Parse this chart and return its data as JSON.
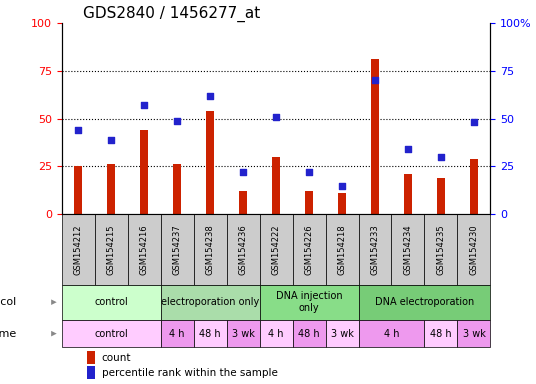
{
  "title": "GDS2840 / 1456277_at",
  "samples": [
    "GSM154212",
    "GSM154215",
    "GSM154216",
    "GSM154237",
    "GSM154238",
    "GSM154236",
    "GSM154222",
    "GSM154226",
    "GSM154218",
    "GSM154233",
    "GSM154234",
    "GSM154235",
    "GSM154230"
  ],
  "counts": [
    25,
    26,
    44,
    26,
    54,
    12,
    30,
    12,
    11,
    81,
    21,
    19,
    29
  ],
  "percentiles": [
    44,
    39,
    57,
    49,
    62,
    22,
    51,
    22,
    15,
    70,
    34,
    30,
    48
  ],
  "bar_color": "#cc2200",
  "dot_color": "#2222cc",
  "ylim": [
    0,
    100
  ],
  "yticks": [
    0,
    25,
    50,
    75,
    100
  ],
  "grid_lines": [
    25,
    50,
    75
  ],
  "protocol_groups": [
    {
      "label": "control",
      "start": 0,
      "end": 3,
      "color": "#ccffcc"
    },
    {
      "label": "electroporation only",
      "start": 3,
      "end": 6,
      "color": "#aaddaa"
    },
    {
      "label": "DNA injection\nonly",
      "start": 6,
      "end": 9,
      "color": "#88dd88"
    },
    {
      "label": "DNA electroporation",
      "start": 9,
      "end": 13,
      "color": "#77cc77"
    }
  ],
  "time_groups": [
    {
      "label": "control",
      "start": 0,
      "end": 3,
      "color": "#ffccff"
    },
    {
      "label": "4 h",
      "start": 3,
      "end": 4,
      "color": "#ee99ee"
    },
    {
      "label": "48 h",
      "start": 4,
      "end": 5,
      "color": "#ffccff"
    },
    {
      "label": "3 wk",
      "start": 5,
      "end": 6,
      "color": "#ee99ee"
    },
    {
      "label": "4 h",
      "start": 6,
      "end": 7,
      "color": "#ffccff"
    },
    {
      "label": "48 h",
      "start": 7,
      "end": 8,
      "color": "#ee99ee"
    },
    {
      "label": "3 wk",
      "start": 8,
      "end": 9,
      "color": "#ffccff"
    },
    {
      "label": "4 h",
      "start": 9,
      "end": 11,
      "color": "#ee99ee"
    },
    {
      "label": "48 h",
      "start": 11,
      "end": 12,
      "color": "#ffccff"
    },
    {
      "label": "3 wk",
      "start": 12,
      "end": 13,
      "color": "#ee99ee"
    }
  ],
  "sample_box_color": "#cccccc",
  "legend_items": [
    {
      "label": "count",
      "color": "#cc2200"
    },
    {
      "label": "percentile rank within the sample",
      "color": "#2222cc"
    }
  ],
  "bar_width": 0.25,
  "dot_size": 18,
  "title_fontsize": 11,
  "axis_label_fontsize": 8,
  "tick_fontsize": 8,
  "sample_fontsize": 6,
  "row_label_fontsize": 8,
  "cell_fontsize": 7
}
